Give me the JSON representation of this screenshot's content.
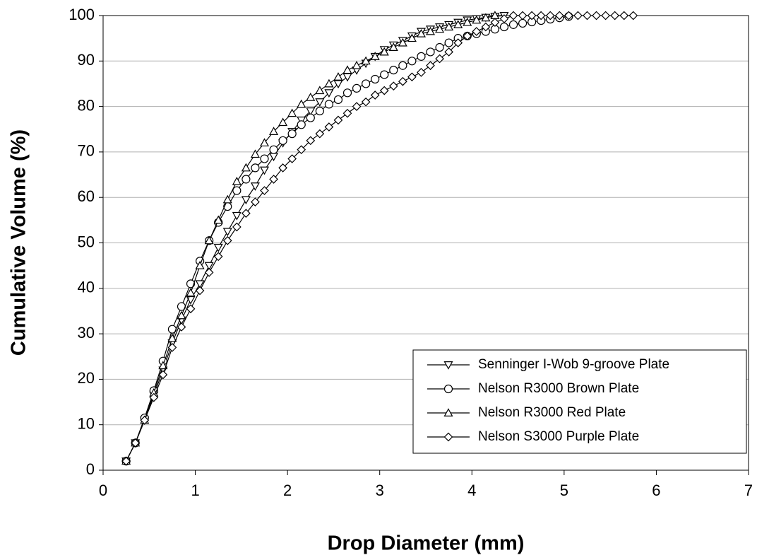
{
  "chart_data": {
    "type": "line",
    "xlabel": "Drop Diameter (mm)",
    "ylabel": "Cumulative Volume (%)",
    "x": [
      0.25,
      0.35,
      0.45,
      0.55,
      0.65,
      0.75,
      0.85,
      0.95,
      1.05,
      1.15,
      1.25,
      1.35,
      1.45,
      1.55,
      1.65,
      1.75,
      1.85,
      1.95,
      2.05,
      2.15,
      2.25,
      2.35,
      2.45,
      2.55,
      2.65,
      2.75,
      2.85,
      2.95,
      3.05,
      3.15,
      3.25,
      3.35,
      3.45,
      3.55,
      3.65,
      3.75,
      3.85,
      3.95,
      4.05,
      4.15,
      4.25,
      4.35,
      4.45,
      4.55,
      4.65,
      4.75,
      4.85,
      4.95,
      5.05,
      5.15,
      5.25,
      5.35,
      5.45,
      5.55,
      5.65,
      5.75
    ],
    "series": [
      {
        "name": "Senninger I-Wob 9-groove Plate",
        "color": "#000000",
        "marker": "triangle-down",
        "values": [
          2,
          6,
          11,
          16.5,
          22,
          28,
          33,
          37.5,
          41,
          45,
          49,
          52.5,
          56,
          59.5,
          62.5,
          66,
          69,
          72,
          74.5,
          77,
          79,
          81,
          83,
          85,
          86.5,
          88,
          89.5,
          91,
          92.5,
          93.5,
          94.5,
          95.5,
          96.5,
          97,
          97.5,
          98,
          98.5,
          99,
          99.3,
          99.6,
          99.8,
          100,
          null,
          null,
          null,
          null,
          null,
          null,
          null,
          null,
          null,
          null,
          null,
          null,
          null,
          null
        ]
      },
      {
        "name": "Nelson R3000 Brown Plate",
        "color": "#000000",
        "marker": "circle",
        "values": [
          2,
          6,
          11.5,
          17.5,
          24,
          31,
          36,
          41,
          46,
          50.5,
          54.5,
          58,
          61.5,
          64,
          66.5,
          68.5,
          70.5,
          72.5,
          74,
          76,
          77.5,
          79,
          80.5,
          81.5,
          83,
          84,
          85,
          86,
          87,
          88,
          89,
          90,
          91,
          92,
          93,
          94,
          95,
          95.5,
          96,
          96.5,
          97,
          97.5,
          98,
          98.3,
          98.6,
          98.9,
          99.2,
          99.5,
          99.8,
          null,
          null,
          null,
          null,
          null,
          null,
          null
        ]
      },
      {
        "name": "Nelson R3000 Red Plate",
        "color": "#000000",
        "marker": "triangle-up",
        "values": [
          2,
          6,
          11,
          17,
          23,
          29,
          34,
          39,
          45,
          50.5,
          55,
          59.5,
          63.5,
          66.5,
          69.5,
          72,
          74.5,
          76.5,
          78.5,
          80.5,
          82,
          83.5,
          85,
          86.5,
          88,
          89,
          90,
          91,
          92,
          93,
          94,
          95,
          96,
          96.5,
          97,
          97.5,
          98,
          98.5,
          99,
          99.5,
          100,
          null,
          null,
          null,
          null,
          null,
          null,
          null,
          null,
          null,
          null,
          null,
          null,
          null,
          null,
          null
        ]
      },
      {
        "name": "Nelson S3000 Purple Plate",
        "color": "#000000",
        "marker": "diamond",
        "values": [
          2,
          6,
          11,
          16,
          21,
          27,
          31.5,
          35.5,
          39.5,
          43.5,
          47,
          50.5,
          53.5,
          56.5,
          59,
          61.5,
          64,
          66.5,
          68.5,
          70.5,
          72.5,
          74,
          75.5,
          77,
          78.5,
          80,
          81,
          82.5,
          83.5,
          84.5,
          85.5,
          86.5,
          87.5,
          89,
          90.5,
          92,
          94,
          95.5,
          96.5,
          97.5,
          98.5,
          99.3,
          100,
          100,
          100,
          100,
          100,
          100,
          100,
          100,
          100,
          100,
          100,
          100,
          100,
          100
        ]
      }
    ],
    "xlim": [
      0,
      7
    ],
    "xticks": [
      0,
      1,
      2,
      3,
      4,
      5,
      6,
      7
    ],
    "ylim": [
      0,
      100
    ],
    "yticks": [
      0,
      10,
      20,
      30,
      40,
      50,
      60,
      70,
      80,
      90,
      100
    ],
    "grid": true,
    "legend": "lower right"
  }
}
